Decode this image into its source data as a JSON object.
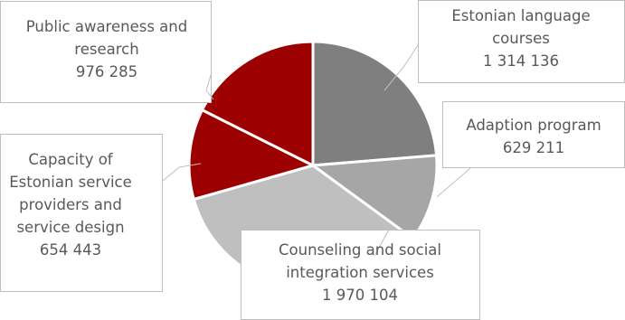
{
  "chart_data": {
    "type": "pie",
    "slices": [
      {
        "label": [
          "Estonian language",
          "courses"
        ],
        "value": 1314136,
        "display_value": "1 314 136",
        "color": "#7f7f7f"
      },
      {
        "label": [
          "Adaption program"
        ],
        "value": 629211,
        "display_value": "629 211",
        "color": "#a6a6a6"
      },
      {
        "label": [
          "Counseling and social",
          "integration services"
        ],
        "value": 1970104,
        "display_value": "1 970 104",
        "color": "#bfbfbf"
      },
      {
        "label": [
          "Capacity of",
          "Estonian service",
          "providers and",
          "service design"
        ],
        "value": 654443,
        "display_value": "654 443",
        "color": "#9c0000"
      },
      {
        "label": [
          "Public awareness and",
          "research"
        ],
        "value": 976285,
        "display_value": "976 285",
        "color": "#9c0000"
      }
    ]
  }
}
